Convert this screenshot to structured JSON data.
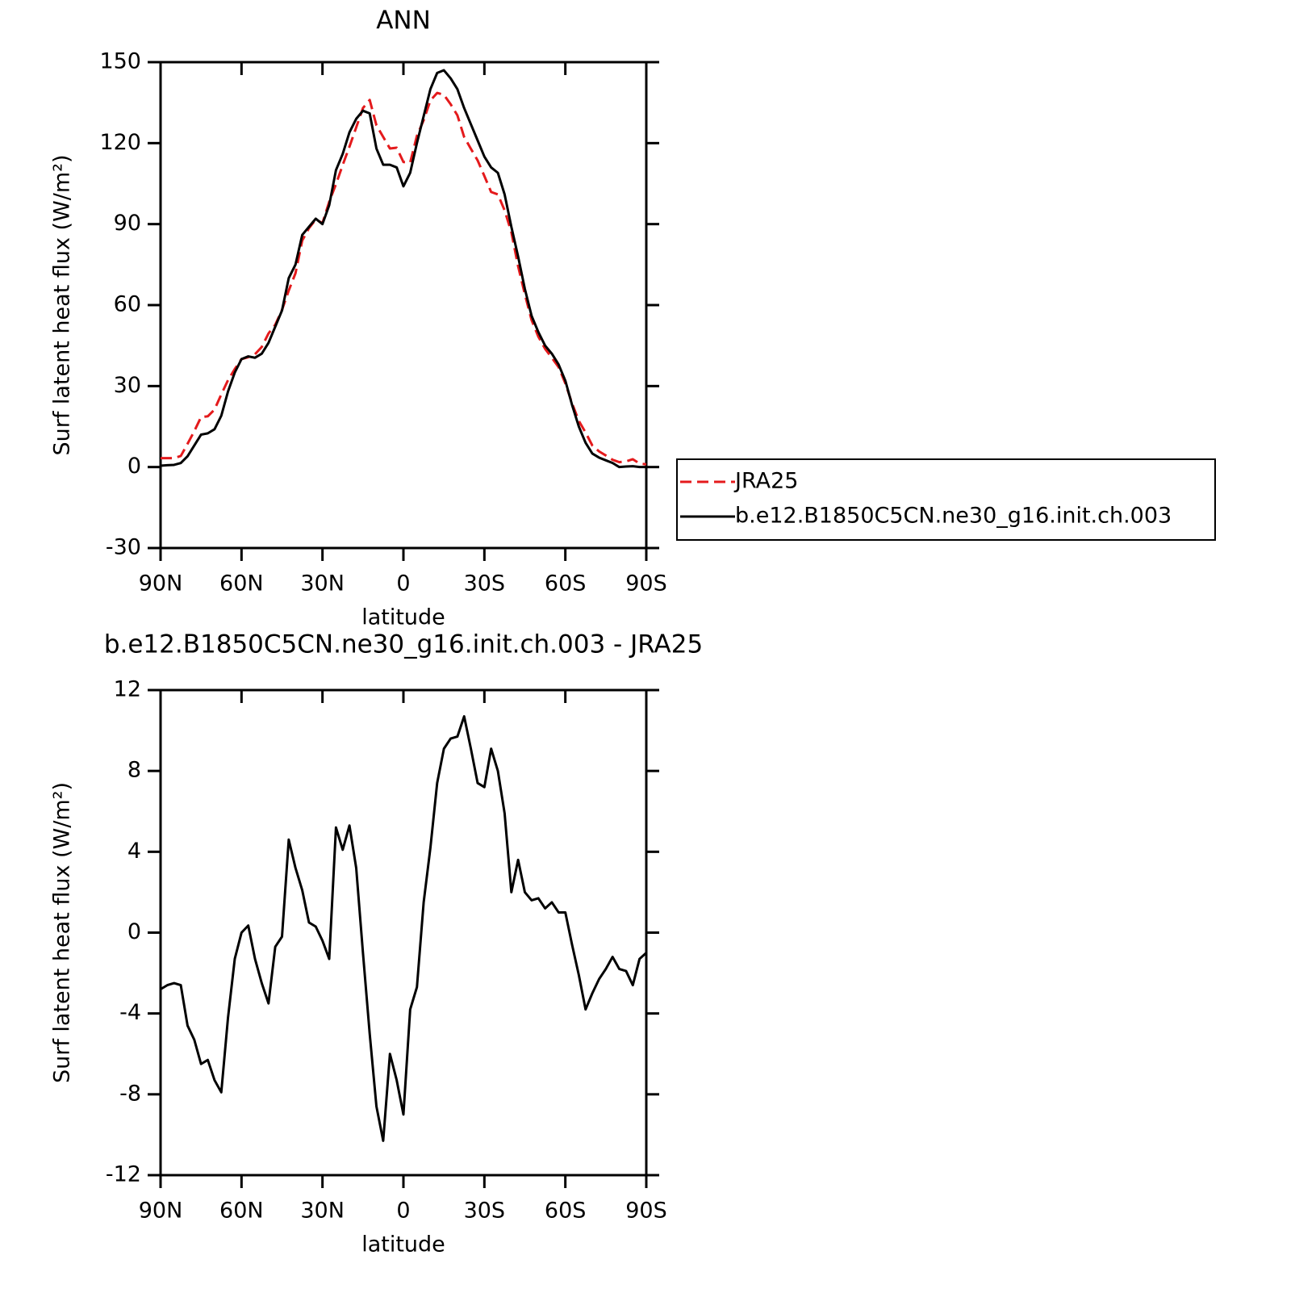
{
  "chart_data": [
    {
      "type": "line",
      "title": "ANN",
      "x_label": "latitude",
      "y_label": "Surf latent heat flux (W/m²)",
      "x": [
        90,
        87.5,
        85,
        82.5,
        80,
        77.5,
        75,
        72.5,
        70,
        67.5,
        65,
        62.5,
        60,
        57.5,
        55,
        52.5,
        50,
        47.5,
        45,
        42.5,
        40,
        37.5,
        35,
        32.5,
        30,
        27.5,
        25,
        22.5,
        20,
        17.5,
        15,
        12.5,
        10,
        7.5,
        5,
        2.5,
        0,
        -2.5,
        -5,
        -7.5,
        -10,
        -12.5,
        -15,
        -17.5,
        -20,
        -22.5,
        -25,
        -27.5,
        -30,
        -32.5,
        -35,
        -37.5,
        -40,
        -42.5,
        -45,
        -47.5,
        -50,
        -52.5,
        -55,
        -57.5,
        -60,
        -62.5,
        -65,
        -67.5,
        -70,
        -72.5,
        -75,
        -77.5,
        -80,
        -82.5,
        -85,
        -87.5,
        -90
      ],
      "series": [
        {
          "name": "JRA25",
          "color": "#e41a1c",
          "dash": "dashed",
          "values": [
            3.3,
            3.3,
            3.3,
            4.1,
            8.6,
            13.3,
            18.5,
            18.8,
            21.3,
            26.9,
            32.2,
            36.3,
            40,
            40.7,
            41.8,
            44.5,
            49.5,
            52.7,
            58.2,
            65.4,
            71.8,
            83.9,
            88.5,
            91.7,
            90.4,
            98.3,
            104.8,
            111.9,
            118.7,
            125.8,
            133,
            136,
            126.6,
            122.3,
            118,
            118.3,
            113,
            112.8,
            122.7,
            128.5,
            135.8,
            138.6,
            137.9,
            134.4,
            130.3,
            122.3,
            117.9,
            113.6,
            107.8,
            101.9,
            101,
            95.1,
            87,
            74.4,
            64,
            54.4,
            48.3,
            43.8,
            40.5,
            37,
            31,
            23.6,
            17.1,
            12.8,
            8,
            5.8,
            4.3,
            2.7,
            1.8,
            2.1,
            2.9,
            1.3,
            1
          ]
        },
        {
          "name": "b.e12.B1850C5CN.ne30_g16.init.ch.003",
          "color": "#000000",
          "dash": "solid",
          "values": [
            0.5,
            0.7,
            0.8,
            1.5,
            4,
            8,
            12,
            12.5,
            14,
            19,
            28,
            35,
            40,
            41,
            40.5,
            42,
            46,
            52,
            58,
            70,
            75,
            86,
            89,
            92,
            90,
            97,
            110,
            116,
            124,
            129,
            132,
            131,
            118,
            112,
            112,
            111,
            104,
            109,
            120,
            130,
            140,
            146,
            147,
            144,
            140,
            133,
            127,
            121,
            115,
            111,
            109,
            101,
            89,
            78,
            66,
            56,
            50,
            45,
            42,
            38,
            32,
            23,
            15,
            9,
            5,
            3.5,
            2.5,
            1.5,
            0,
            0.2,
            0.3,
            0,
            0
          ]
        }
      ],
      "xlim": [
        90,
        -90
      ],
      "xticks": [
        {
          "value": 90,
          "label": "90N"
        },
        {
          "value": 60,
          "label": "60N"
        },
        {
          "value": 30,
          "label": "30N"
        },
        0,
        {
          "value": -30,
          "label": "30S"
        },
        {
          "value": -60,
          "label": "60S"
        },
        {
          "value": -90,
          "label": "90S"
        }
      ],
      "ylim": [
        -30,
        150
      ],
      "yticks": [
        -30,
        0,
        30,
        60,
        90,
        120,
        150
      ],
      "legend": "right"
    },
    {
      "type": "line",
      "title": "b.e12.B1850C5CN.ne30_g16.init.ch.003 - JRA25",
      "x_label": "latitude",
      "y_label": "Surf latent heat flux (W/m²)",
      "x": [
        90,
        87.5,
        85,
        82.5,
        80,
        77.5,
        75,
        72.5,
        70,
        67.5,
        65,
        62.5,
        60,
        57.5,
        55,
        52.5,
        50,
        47.5,
        45,
        42.5,
        40,
        37.5,
        35,
        32.5,
        30,
        27.5,
        25,
        22.5,
        20,
        17.5,
        15,
        12.5,
        10,
        7.5,
        5,
        2.5,
        0,
        -2.5,
        -5,
        -7.5,
        -10,
        -12.5,
        -15,
        -17.5,
        -20,
        -22.5,
        -25,
        -27.5,
        -30,
        -32.5,
        -35,
        -37.5,
        -40,
        -42.5,
        -45,
        -47.5,
        -50,
        -52.5,
        -55,
        -57.5,
        -60,
        -62.5,
        -65,
        -67.5,
        -70,
        -72.5,
        -75,
        -77.5,
        -80,
        -82.5,
        -85,
        -87.5,
        -90
      ],
      "color": "#000000",
      "values": [
        -2.8,
        -2.6,
        -2.5,
        -2.6,
        -4.6,
        -5.3,
        -6.5,
        -6.3,
        -7.3,
        -7.9,
        -4.2,
        -1.3,
        0,
        0.35,
        -1.3,
        -2.5,
        -3.5,
        -0.7,
        -0.2,
        4.6,
        3.2,
        2.1,
        0.5,
        0.3,
        -0.4,
        -1.3,
        5.2,
        4.1,
        5.3,
        3.2,
        -1,
        -5,
        -8.6,
        -10.3,
        -6,
        -7.3,
        -9,
        -3.8,
        -2.7,
        1.5,
        4.2,
        7.4,
        9.1,
        9.6,
        9.7,
        10.7,
        9.1,
        7.4,
        7.2,
        9.1,
        8,
        5.9,
        2,
        3.6,
        2,
        1.6,
        1.7,
        1.2,
        1.5,
        1,
        1,
        -0.6,
        -2.1,
        -3.8,
        -3,
        -2.3,
        -1.8,
        -1.2,
        -1.8,
        -1.9,
        -2.6,
        -1.3,
        -1
      ],
      "xlim": [
        90,
        -90
      ],
      "xticks": [
        {
          "value": 90,
          "label": "90N"
        },
        {
          "value": 60,
          "label": "60N"
        },
        {
          "value": 30,
          "label": "30N"
        },
        0,
        {
          "value": -30,
          "label": "30S"
        },
        {
          "value": -60,
          "label": "60S"
        },
        {
          "value": -90,
          "label": "90S"
        }
      ],
      "ylim": [
        -12,
        12
      ],
      "yticks": [
        -12,
        -8,
        -4,
        0,
        4,
        8,
        12
      ]
    }
  ]
}
